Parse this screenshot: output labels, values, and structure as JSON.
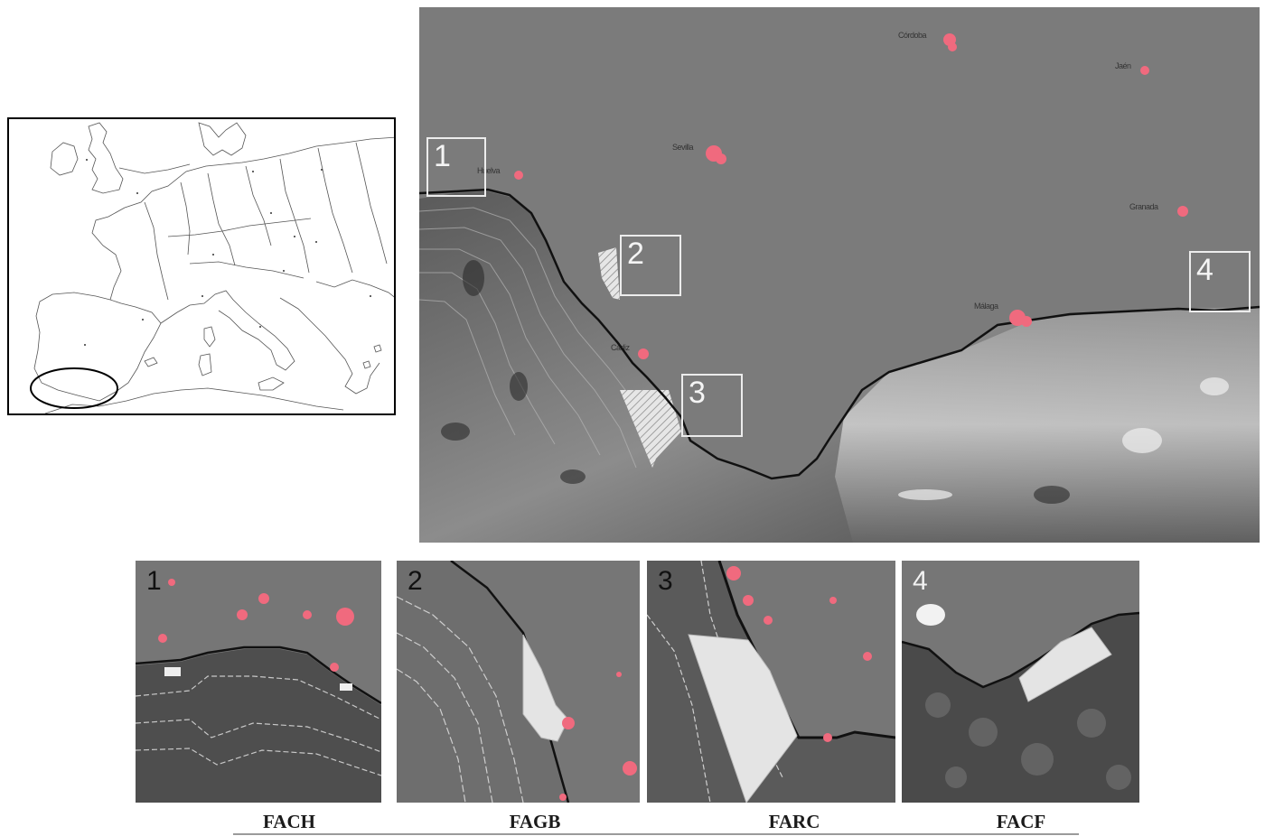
{
  "inset_map": {
    "highlight": "southern Iberia (Andalusia) circled",
    "stroke_color": "#000000"
  },
  "main_map": {
    "areas": [
      {
        "num": "1"
      },
      {
        "num": "2"
      },
      {
        "num": "3"
      },
      {
        "num": "4"
      }
    ],
    "cities": [
      {
        "label": "Huelva"
      },
      {
        "label": "Sevilla"
      },
      {
        "label": "Córdoba"
      },
      {
        "label": "Jaén"
      },
      {
        "label": "Granada"
      },
      {
        "label": "Málaga"
      },
      {
        "label": "Cádiz"
      }
    ],
    "colors": {
      "sea": "#7b7b7b",
      "urban": "#f06a7e",
      "box": "#ececec",
      "coast": "#111111"
    }
  },
  "panels": [
    {
      "num": "1",
      "code": "FACH"
    },
    {
      "num": "2",
      "code": "FAGB"
    },
    {
      "num": "3",
      "code": "FARC"
    },
    {
      "num": "4",
      "code": "FACF"
    }
  ]
}
